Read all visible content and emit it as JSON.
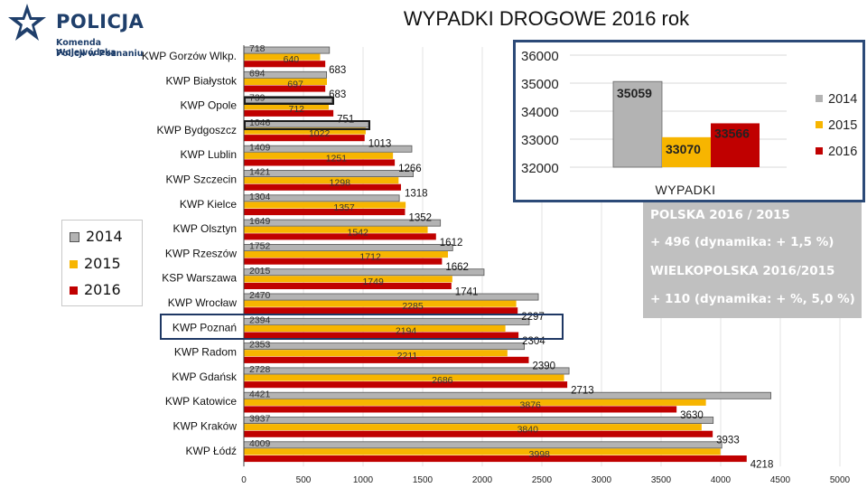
{
  "logo": {
    "name": "POLICJA",
    "line1": "Komenda Wojewódzka",
    "line2": "Policji w Poznaniu"
  },
  "title": "WYPADKI DROGOWE  2016 rok",
  "colors": {
    "y2014": "#b3b3b3",
    "y2015": "#f7b500",
    "y2016": "#c00000",
    "panel_border": "#2c4a78",
    "info_bg": "#c0c0c0"
  },
  "chart_data": [
    {
      "type": "bar",
      "orientation": "horizontal",
      "title": "WYPADKI DROGOWE  2016 rok",
      "xlim": [
        0,
        5000
      ],
      "xticks": [
        0,
        500,
        1000,
        1500,
        2000,
        2500,
        3000,
        3500,
        4000,
        4500,
        5000
      ],
      "categories": [
        "KWP Gorzów Wlkp.",
        "KWP Białystok",
        "KWP Opole",
        "KWP Bydgoszcz",
        "KWP Lublin",
        "KWP Szczecin",
        "KWP Kielce",
        "KWP Olsztyn",
        "KWP Rzeszów",
        "KSP Warszawa",
        "KWP Wrocław",
        "KWP Poznań",
        "KWP Radom",
        "KWP Gdańsk",
        "KWP Katowice",
        "KWP Kraków",
        "KWP Łódź"
      ],
      "series": [
        {
          "name": "2014",
          "values": [
            718,
            694,
            739,
            1046,
            1409,
            1421,
            1304,
            1649,
            1752,
            2015,
            2470,
            2394,
            2353,
            2728,
            4421,
            3937,
            4009
          ]
        },
        {
          "name": "2015",
          "values": [
            640,
            697,
            712,
            1022,
            1251,
            1298,
            1357,
            1542,
            1712,
            1749,
            2285,
            2194,
            2211,
            2686,
            3876,
            3840,
            3998
          ]
        },
        {
          "name": "2016",
          "values": [
            683,
            683,
            751,
            1013,
            1266,
            1318,
            1352,
            1612,
            1662,
            1741,
            2297,
            2304,
            2390,
            2713,
            3630,
            3933,
            4218
          ]
        }
      ],
      "legend": [
        "2014",
        "2015",
        "2016"
      ],
      "legend_position": "left"
    },
    {
      "type": "bar",
      "xlabel": "WYPADKI",
      "ylim": [
        32000,
        36000
      ],
      "yticks": [
        32000,
        33000,
        34000,
        35000,
        36000
      ],
      "series": [
        {
          "name": "2014",
          "values": [
            35059
          ]
        },
        {
          "name": "2015",
          "values": [
            33070
          ]
        },
        {
          "name": "2016",
          "values": [
            33566
          ]
        }
      ],
      "legend": [
        "2014",
        "2015",
        "2016"
      ],
      "legend_position": "right"
    }
  ],
  "info": {
    "polska": "POLSKA 2016 / 2015",
    "polska_change": "+ 496 (dynamika: + 1,5 %)",
    "wlkp": "WIELKOPOLSKA 2016/2015",
    "wlkp_change": "+ 110 (dynamika: + %, 5,0 %)"
  }
}
